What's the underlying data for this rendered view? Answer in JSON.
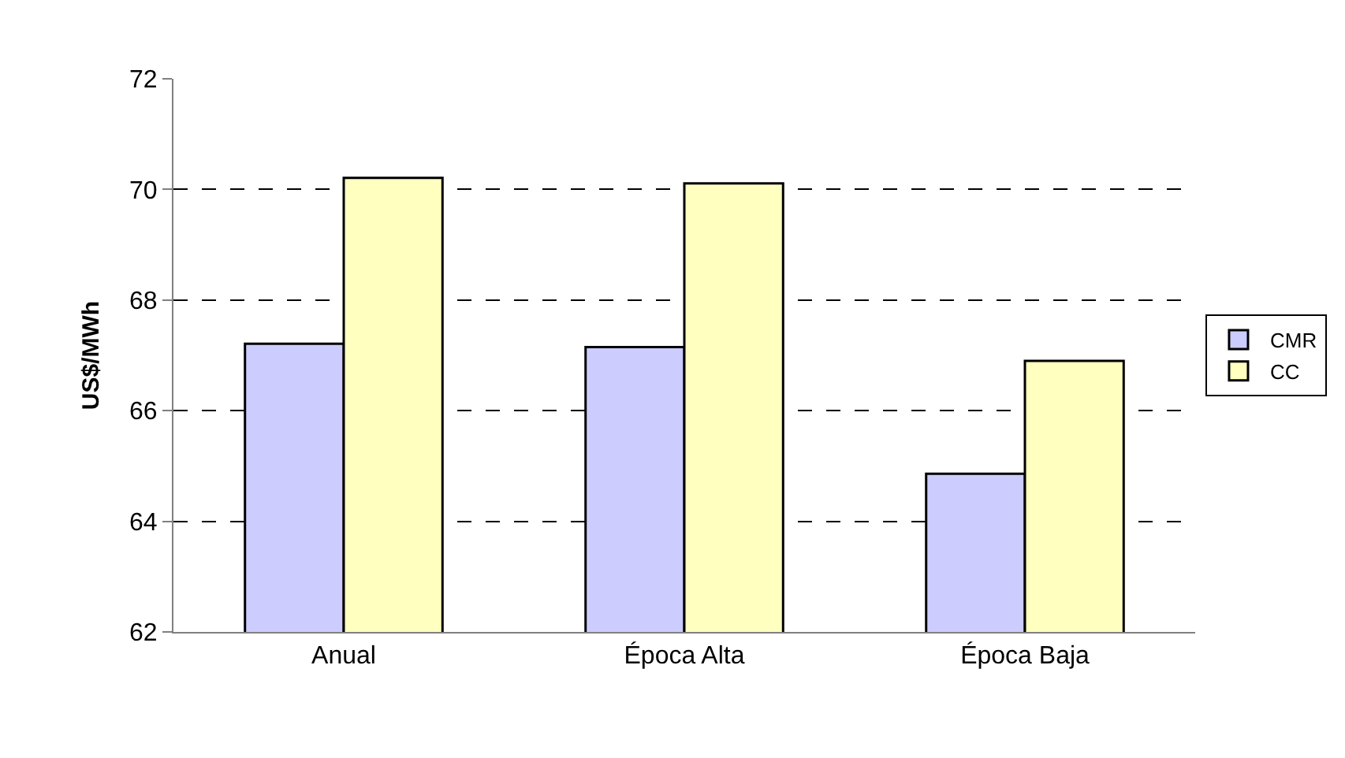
{
  "chart_data": {
    "type": "bar",
    "ylabel": "US$/MWh",
    "categories": [
      "Anual",
      "Época Alta",
      "Época Baja"
    ],
    "series": [
      {
        "name": "CMR",
        "color": "#ccccff",
        "values": [
          67.21,
          67.15,
          64.86
        ]
      },
      {
        "name": "CC",
        "color": "#ffffc0",
        "values": [
          70.21,
          70.11,
          66.9
        ]
      }
    ],
    "ylim": [
      62,
      72
    ],
    "yticks": [
      62,
      64,
      66,
      68,
      70,
      72
    ],
    "grid": "y",
    "legend": "right"
  }
}
